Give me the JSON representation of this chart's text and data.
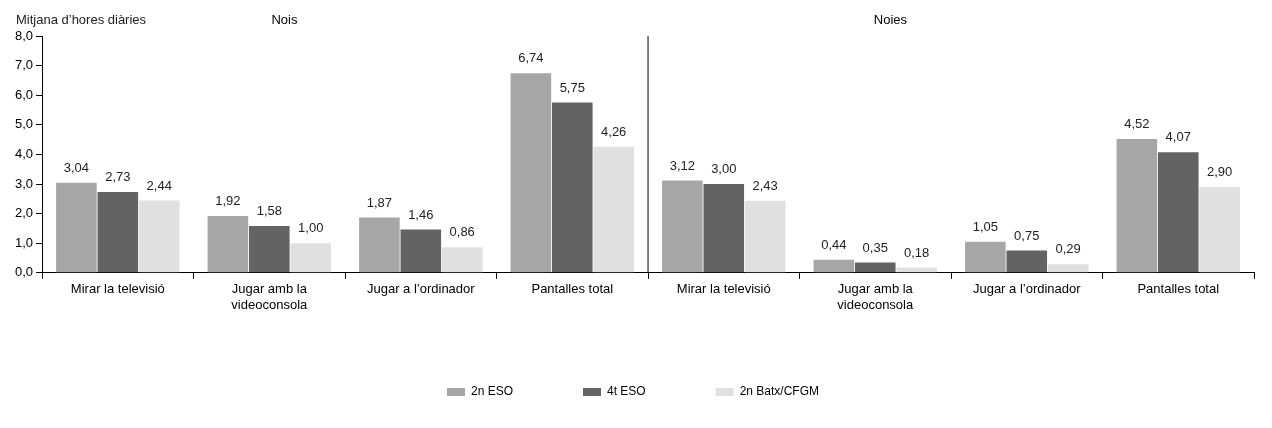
{
  "chart_data": {
    "type": "bar",
    "ylabel": "Mitjana d’hores diàries",
    "annotations": [
      "Nois",
      "Noies"
    ],
    "categories": [
      "Mirar la televisió",
      "Jugar amb la videoconsola",
      "Jugar a l’ordinador",
      "Pantalles total",
      "Mirar la televisió",
      "Jugar amb la videoconsola",
      "Jugar a l’ordinador",
      "Pantalles total"
    ],
    "series": [
      {
        "name": "2n ESO",
        "color": "#a6a6a6",
        "values": [
          3.04,
          1.92,
          1.87,
          6.74,
          3.12,
          0.44,
          1.05,
          4.52
        ],
        "value_labels": [
          "3,04",
          "1,92",
          "1,87",
          "6,74",
          "3,12",
          "0,44",
          "1,05",
          "4,52"
        ]
      },
      {
        "name": "4t ESO",
        "color": "#636363",
        "values": [
          2.73,
          1.58,
          1.46,
          5.75,
          3.0,
          0.35,
          0.75,
          4.07
        ],
        "value_labels": [
          "2,73",
          "1,58",
          "1,46",
          "5,75",
          "3,00",
          "0,35",
          "0,75",
          "4,07"
        ]
      },
      {
        "name": "2n Batx/CFGM",
        "color": "#e0e0e0",
        "values": [
          2.44,
          1.0,
          0.86,
          4.26,
          2.43,
          0.18,
          0.29,
          2.9
        ],
        "value_labels": [
          "2,44",
          "1,00",
          "0,86",
          "4,26",
          "2,43",
          "0,18",
          "0,29",
          "2,90"
        ]
      }
    ],
    "ylim": [
      0,
      8
    ],
    "yticks": [
      {
        "value": 0,
        "label": "0,0"
      },
      {
        "value": 1,
        "label": "1,0"
      },
      {
        "value": 2,
        "label": "2,0"
      },
      {
        "value": 3,
        "label": "3,0"
      },
      {
        "value": 4,
        "label": "4,0"
      },
      {
        "value": 5,
        "label": "5,0"
      },
      {
        "value": 6,
        "label": "6,0"
      },
      {
        "value": 7,
        "label": "7,0"
      },
      {
        "value": 8,
        "label": "8,0"
      }
    ],
    "grid": false,
    "legend": "bottom"
  }
}
